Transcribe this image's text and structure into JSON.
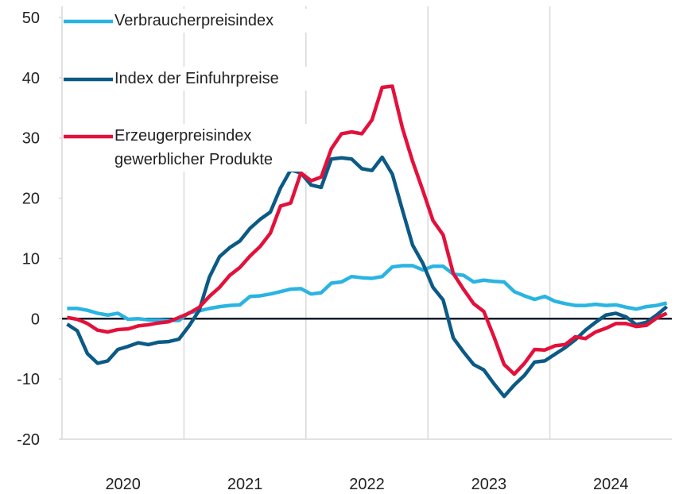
{
  "chart_data": {
    "type": "line",
    "categories": [
      "2020",
      null,
      null,
      null,
      null,
      null,
      null,
      null,
      null,
      null,
      null,
      null,
      "2021",
      null,
      null,
      null,
      null,
      null,
      null,
      null,
      null,
      null,
      null,
      null,
      "2022",
      null,
      null,
      null,
      null,
      null,
      null,
      null,
      null,
      null,
      null,
      null,
      "2023",
      null,
      null,
      null,
      null,
      null,
      null,
      null,
      null,
      null,
      null,
      null,
      "2024",
      null,
      null,
      null,
      null,
      null,
      null,
      null,
      null,
      null,
      null,
      null
    ],
    "series": [
      {
        "name": "Verbraucherpreisindex",
        "color": "#2ab4e2",
        "values": [
          1.7,
          1.7,
          1.4,
          0.9,
          0.6,
          0.9,
          -0.1,
          0.0,
          -0.2,
          -0.2,
          -0.3,
          -0.3,
          1.0,
          1.3,
          1.7,
          2.0,
          2.2,
          2.3,
          3.7,
          3.8,
          4.1,
          4.5,
          4.9,
          5.0,
          4.1,
          4.3,
          5.9,
          6.1,
          7.0,
          6.8,
          6.7,
          7.0,
          8.6,
          8.8,
          8.8,
          8.1,
          8.7,
          8.7,
          7.4,
          7.2,
          6.1,
          6.4,
          6.2,
          6.1,
          4.5,
          3.8,
          3.2,
          3.7,
          2.9,
          2.5,
          2.2,
          2.2,
          2.4,
          2.2,
          2.3,
          1.9,
          1.6,
          2.0,
          2.2,
          2.6
        ]
      },
      {
        "name": "Index der Einfuhrpreise",
        "color": "#0b5a86",
        "values": [
          -0.9,
          -2.0,
          -5.8,
          -7.4,
          -7.0,
          -5.1,
          -4.6,
          -4.0,
          -4.3,
          -3.9,
          -3.8,
          -3.4,
          -1.2,
          1.4,
          6.9,
          10.3,
          11.8,
          12.9,
          15.0,
          16.5,
          17.7,
          21.7,
          24.7,
          24.2,
          22.2,
          21.8,
          26.5,
          26.7,
          26.5,
          24.9,
          24.6,
          26.8,
          24.0,
          18.0,
          12.2,
          9.2,
          5.2,
          3.1,
          -3.2,
          -5.5,
          -7.6,
          -8.5,
          -10.8,
          -12.9,
          -11.0,
          -9.4,
          -7.2,
          -7.0,
          -5.9,
          -4.8,
          -3.5,
          -1.9,
          -0.6,
          0.6,
          0.9,
          0.3,
          -1.0,
          -0.6,
          0.6,
          2.0
        ]
      },
      {
        "name": "Erzeugerpreisindex gewerblicher Produkte",
        "color": "#e3103b",
        "values": [
          0.2,
          -0.1,
          -0.8,
          -1.9,
          -2.2,
          -1.8,
          -1.7,
          -1.2,
          -1.0,
          -0.7,
          -0.5,
          0.2,
          0.9,
          1.9,
          3.7,
          5.2,
          7.2,
          8.5,
          10.4,
          12.0,
          14.2,
          18.7,
          19.2,
          24.2,
          22.9,
          23.5,
          28.2,
          30.7,
          31.0,
          30.7,
          33.0,
          38.4,
          38.6,
          31.6,
          26.1,
          21.3,
          16.3,
          13.9,
          7.5,
          4.9,
          2.5,
          1.2,
          -3.0,
          -7.6,
          -9.2,
          -7.4,
          -5.1,
          -5.2,
          -4.5,
          -4.3,
          -3.0,
          -3.3,
          -2.2,
          -1.6,
          -0.8,
          -0.8,
          -1.3,
          -1.1,
          0.1,
          0.9
        ]
      }
    ],
    "ylim": [
      -20,
      50
    ],
    "yticks": [
      -20,
      -10,
      0,
      10,
      20,
      30,
      40,
      50
    ],
    "legend": "upper-left"
  }
}
